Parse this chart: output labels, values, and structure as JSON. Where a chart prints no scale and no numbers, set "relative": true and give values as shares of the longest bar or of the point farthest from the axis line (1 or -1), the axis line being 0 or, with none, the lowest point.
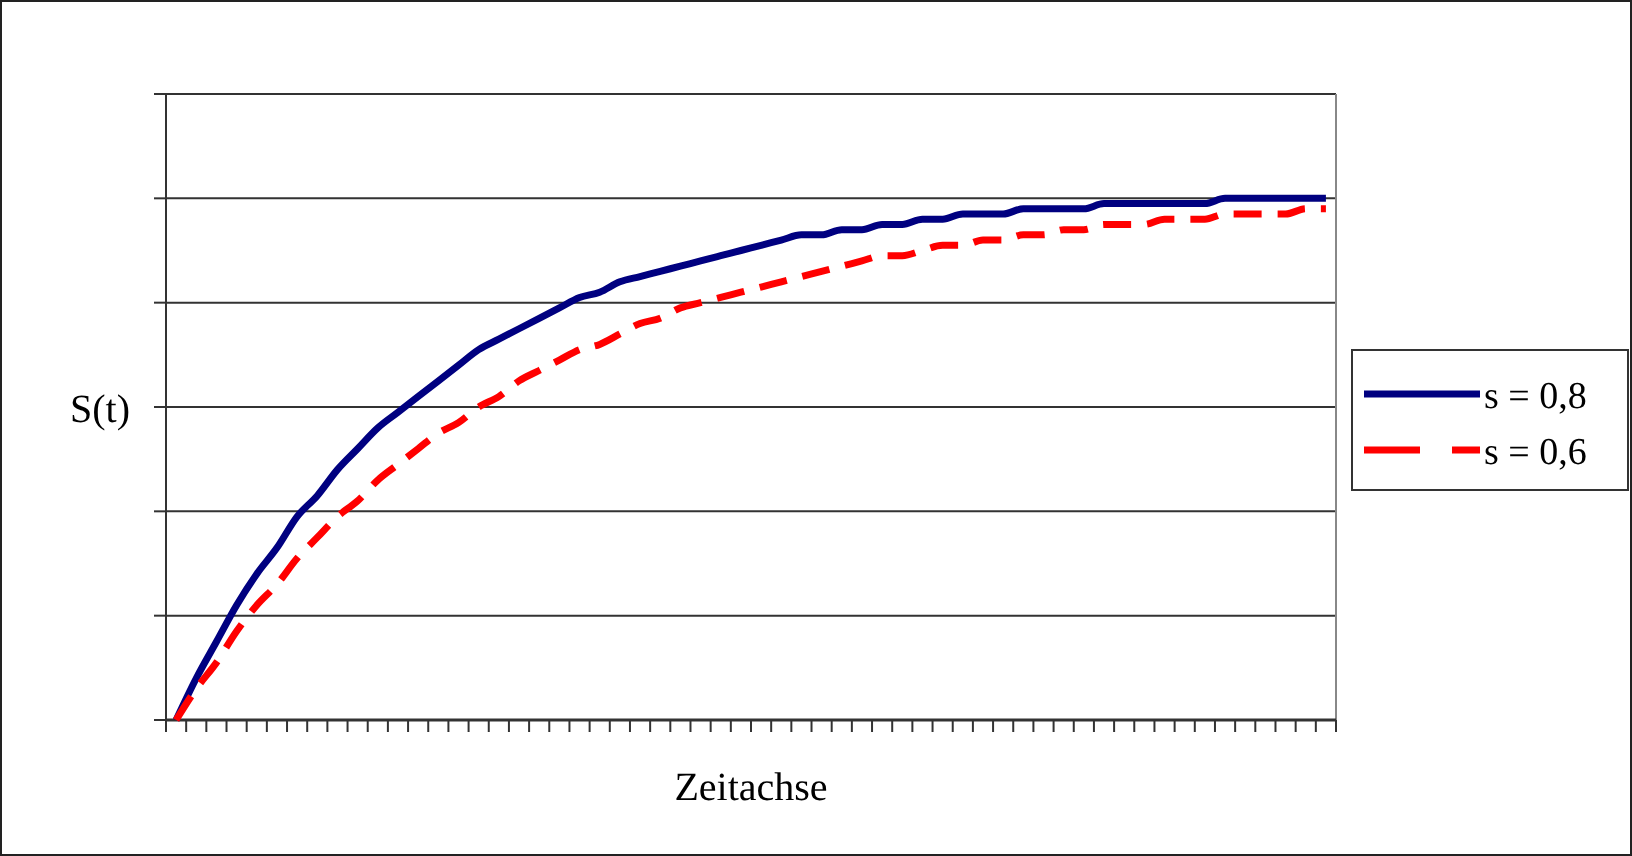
{
  "chart_data": {
    "type": "line",
    "relative": true,
    "xlabel": "Zeitachse",
    "ylabel": "S(t)",
    "grid": "y",
    "legend": "right",
    "categories": [
      null,
      null,
      null,
      null,
      null,
      null,
      null,
      null,
      null,
      null,
      null,
      null,
      null,
      null,
      null,
      null,
      null,
      null,
      null,
      null,
      null,
      null,
      null,
      null,
      null,
      null,
      null,
      null,
      null,
      null,
      null,
      null,
      null,
      null,
      null,
      null,
      null,
      null,
      null,
      null,
      null,
      null,
      null,
      null,
      null,
      null,
      null,
      null,
      null,
      null,
      null,
      null,
      null,
      null,
      null,
      null,
      null,
      null
    ],
    "series": [
      {
        "name": "s = 0,8",
        "color": "#000080",
        "line_style": "solid",
        "values": [
          0,
          0.08,
          0.15,
          0.22,
          0.28,
          0.33,
          0.39,
          0.43,
          0.48,
          0.52,
          0.56,
          0.59,
          0.62,
          0.65,
          0.68,
          0.71,
          0.73,
          0.75,
          0.77,
          0.79,
          0.81,
          0.82,
          0.84,
          0.85,
          0.86,
          0.87,
          0.88,
          0.89,
          0.9,
          0.91,
          0.92,
          0.93,
          0.93,
          0.94,
          0.94,
          0.95,
          0.95,
          0.96,
          0.96,
          0.97,
          0.97,
          0.97,
          0.98,
          0.98,
          0.98,
          0.98,
          0.99,
          0.99,
          0.99,
          0.99,
          0.99,
          0.99,
          1,
          1,
          1,
          1,
          1,
          1
        ]
      },
      {
        "name": "s = 0,6",
        "color": "#ff0000",
        "line_style": "dashed",
        "values": [
          0,
          0.06,
          0.11,
          0.17,
          0.22,
          0.26,
          0.31,
          0.35,
          0.39,
          0.42,
          0.46,
          0.49,
          0.52,
          0.55,
          0.57,
          0.6,
          0.62,
          0.65,
          0.67,
          0.69,
          0.71,
          0.72,
          0.74,
          0.76,
          0.77,
          0.79,
          0.8,
          0.81,
          0.82,
          0.83,
          0.84,
          0.85,
          0.86,
          0.87,
          0.88,
          0.89,
          0.89,
          0.9,
          0.91,
          0.91,
          0.92,
          0.92,
          0.93,
          0.93,
          0.94,
          0.94,
          0.95,
          0.95,
          0.95,
          0.96,
          0.96,
          0.96,
          0.97,
          0.97,
          0.97,
          0.97,
          0.98,
          0.98
        ]
      }
    ]
  }
}
